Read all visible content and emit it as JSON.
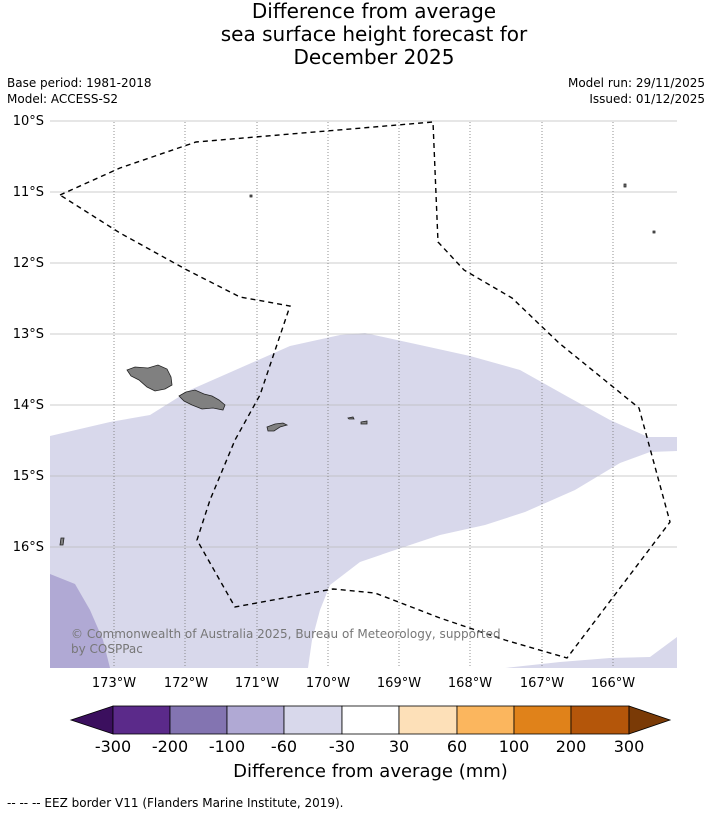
{
  "title": {
    "line1": "Difference from average",
    "line2": "sea surface height forecast for",
    "line3": "December 2025"
  },
  "meta": {
    "base_period": "Base period: 1981-2018",
    "model": "Model: ACCESS-S2",
    "model_run": "Model run: 29/11/2025",
    "issued": "Issued: 01/12/2025"
  },
  "map": {
    "lat_labels": [
      "10°S",
      "11°S",
      "12°S",
      "13°S",
      "14°S",
      "15°S",
      "16°S"
    ],
    "lon_labels": [
      "173°W",
      "172°W",
      "171°W",
      "170°W",
      "169°W",
      "168°W",
      "167°W",
      "166°W"
    ],
    "copyright_line1": "© Commonwealth of Australia 2025, Bureau of Meteorology, supported",
    "copyright_line2": "by COSPPac",
    "colors": {
      "water_light": "#d8d8eb",
      "water_mid": "#b0a9d4",
      "land": "#808080",
      "grid": "#bbbbbb"
    }
  },
  "colorbar": {
    "ticks": [
      "-300",
      "-200",
      "-100",
      "-60",
      "-30",
      "30",
      "60",
      "100",
      "200",
      "300"
    ],
    "colors": [
      "#3b0f5e",
      "#5b2a8a",
      "#8374b1",
      "#b0a9d4",
      "#d8d8eb",
      "#ffffff",
      "#fde0b8",
      "#fbb65e",
      "#e0821a",
      "#b4560a",
      "#7a3a06"
    ],
    "title": "Difference from average (mm)"
  },
  "footer": {
    "legend_text": "--  --  -- EEZ border V11 (Flanders Marine Institute, 2019)."
  }
}
